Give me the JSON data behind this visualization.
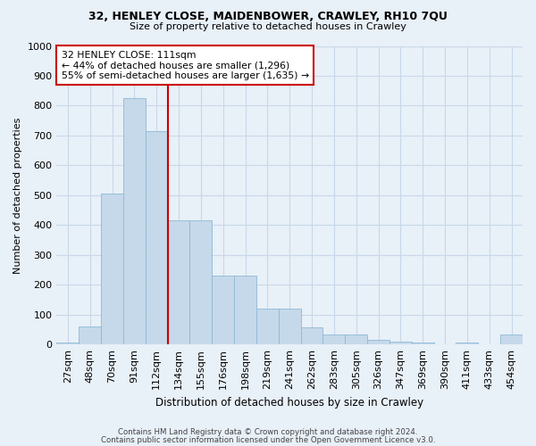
{
  "title1": "32, HENLEY CLOSE, MAIDENBOWER, CRAWLEY, RH10 7QU",
  "title2": "Size of property relative to detached houses in Crawley",
  "xlabel": "Distribution of detached houses by size in Crawley",
  "ylabel": "Number of detached properties",
  "categories": [
    "27sqm",
    "48sqm",
    "70sqm",
    "91sqm",
    "112sqm",
    "134sqm",
    "155sqm",
    "176sqm",
    "198sqm",
    "219sqm",
    "241sqm",
    "262sqm",
    "283sqm",
    "305sqm",
    "326sqm",
    "347sqm",
    "369sqm",
    "390sqm",
    "411sqm",
    "433sqm",
    "454sqm"
  ],
  "values": [
    7,
    60,
    505,
    825,
    715,
    415,
    415,
    230,
    230,
    120,
    120,
    57,
    35,
    35,
    15,
    10,
    8,
    0,
    7,
    0,
    35
  ],
  "bar_color": "#c5d9ea",
  "bar_edge_color": "#8fb8d4",
  "vline_color": "#cc0000",
  "vline_x_index": 4.5,
  "annotation_line1": "32 HENLEY CLOSE: 111sqm",
  "annotation_line2": "← 44% of detached houses are smaller (1,296)",
  "annotation_line3": "55% of semi-detached houses are larger (1,635) →",
  "annotation_box_facecolor": "#ffffff",
  "annotation_box_edgecolor": "#cc0000",
  "grid_color": "#c8d8e8",
  "background_color": "#e8f0f8",
  "ylim": [
    0,
    1000
  ],
  "yticks": [
    0,
    100,
    200,
    300,
    400,
    500,
    600,
    700,
    800,
    900,
    1000
  ],
  "footer1": "Contains HM Land Registry data © Crown copyright and database right 2024.",
  "footer2": "Contains public sector information licensed under the Open Government Licence v3.0."
}
